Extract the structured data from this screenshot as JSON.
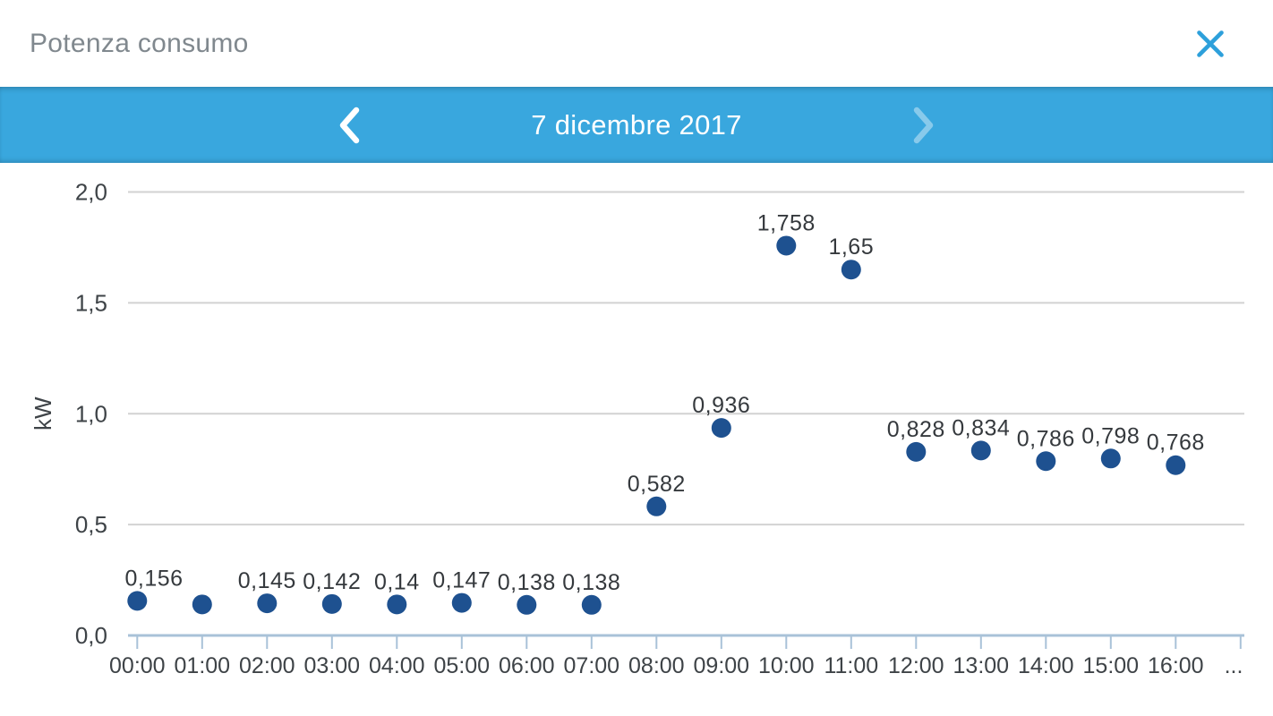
{
  "dialog": {
    "title": "Potenza consumo",
    "close_icon": "close-icon"
  },
  "date_nav": {
    "date": "7 dicembre 2017",
    "prev_icon": "chevron-left-icon",
    "next_icon": "chevron-right-icon",
    "next_disabled": true
  },
  "colors": {
    "nav_bar": "#39a7de",
    "accent_blue": "#2da0db",
    "point_fill": "#1e5190",
    "grid_line": "#d2d2d2",
    "axis_line": "#a9c2d8",
    "tick_text": "#3e4347",
    "label_text": "#35393d",
    "title_text": "#80888e",
    "next_arrow_disabled": "rgba(255,255,255,0.4)"
  },
  "chart_data": {
    "type": "scatter",
    "title": "Potenza consumo",
    "xlabel": "",
    "ylabel": "kW",
    "ylim": [
      0,
      2
    ],
    "grid": true,
    "legend_position": "none",
    "yticks": [
      {
        "value": 0,
        "label": "0,0"
      },
      {
        "value": 0.5,
        "label": "0,5"
      },
      {
        "value": 1,
        "label": "1,0"
      },
      {
        "value": 1.5,
        "label": "1,5"
      },
      {
        "value": 2,
        "label": "2,0"
      }
    ],
    "categories": [
      "00:00",
      "01:00",
      "02:00",
      "03:00",
      "04:00",
      "05:00",
      "06:00",
      "07:00",
      "08:00",
      "09:00",
      "10:00",
      "11:00",
      "12:00",
      "13:00",
      "14:00",
      "15:00",
      "16:00",
      "..."
    ],
    "points": [
      {
        "time": "00:00",
        "value": 0.156,
        "label": "0,156"
      },
      {
        "time": "01:00",
        "value": 0.14,
        "label": ""
      },
      {
        "time": "02:00",
        "value": 0.145,
        "label": "0,145"
      },
      {
        "time": "03:00",
        "value": 0.142,
        "label": "0,142"
      },
      {
        "time": "04:00",
        "value": 0.14,
        "label": "0,14"
      },
      {
        "time": "05:00",
        "value": 0.147,
        "label": "0,147"
      },
      {
        "time": "06:00",
        "value": 0.138,
        "label": "0,138"
      },
      {
        "time": "07:00",
        "value": 0.138,
        "label": "0,138"
      },
      {
        "time": "08:00",
        "value": 0.582,
        "label": "0,582"
      },
      {
        "time": "09:00",
        "value": 0.936,
        "label": "0,936"
      },
      {
        "time": "10:00",
        "value": 1.758,
        "label": "1,758"
      },
      {
        "time": "11:00",
        "value": 1.65,
        "label": "1,65"
      },
      {
        "time": "12:00",
        "value": 0.828,
        "label": "0,828"
      },
      {
        "time": "13:00",
        "value": 0.834,
        "label": "0,834"
      },
      {
        "time": "14:00",
        "value": 0.786,
        "label": "0,786"
      },
      {
        "time": "15:00",
        "value": 0.798,
        "label": "0,798"
      },
      {
        "time": "16:00",
        "value": 0.768,
        "label": "0,768"
      }
    ]
  }
}
